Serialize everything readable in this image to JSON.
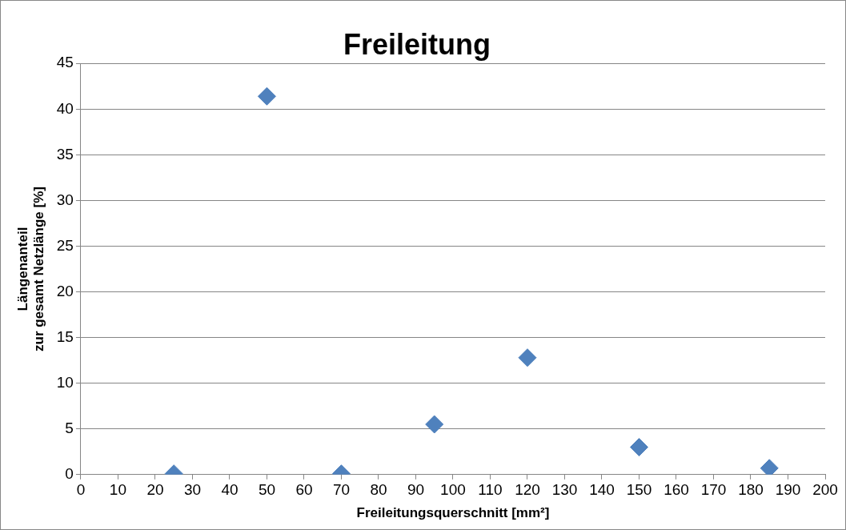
{
  "chart_data": {
    "type": "scatter",
    "title": "Freileitung",
    "xlabel": "Freileitungsquerschnitt [mm²]",
    "ylabel": "Längenanteil\nzur gesamt Netzlänge [%]",
    "x": [
      25,
      50,
      70,
      95,
      120,
      150,
      185
    ],
    "values": [
      0.1,
      41.4,
      0.1,
      5.5,
      12.8,
      3.0,
      0.7
    ],
    "color": "#4f81bd",
    "marker": "diamond",
    "xlim": [
      0,
      200
    ],
    "xticks": [
      0,
      10,
      20,
      30,
      40,
      50,
      60,
      70,
      80,
      90,
      100,
      110,
      120,
      130,
      140,
      150,
      160,
      170,
      180,
      190,
      200
    ],
    "ylim": [
      0,
      45
    ],
    "yticks": [
      0,
      5,
      10,
      15,
      20,
      25,
      30,
      35,
      40,
      45
    ],
    "grid": "y",
    "legend": false
  }
}
